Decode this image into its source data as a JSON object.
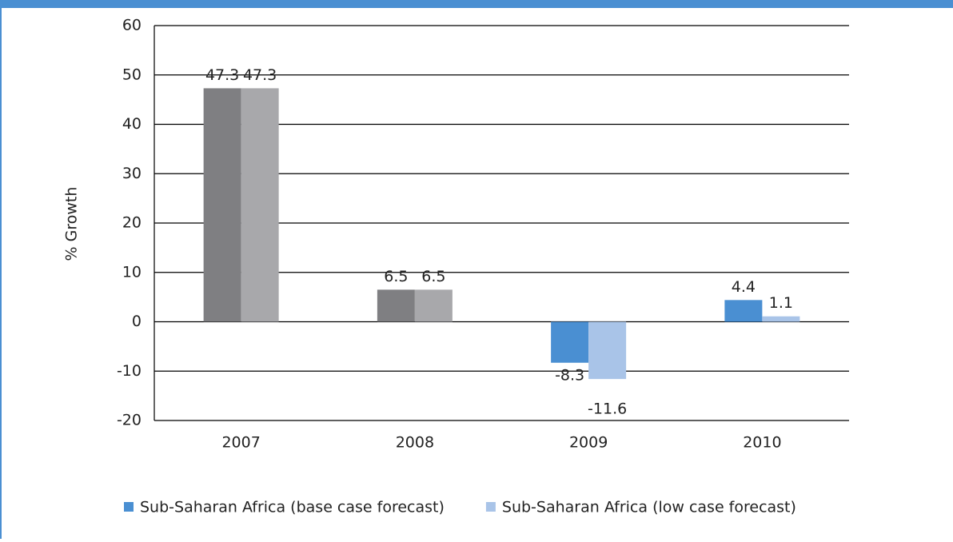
{
  "chart_data": {
    "type": "bar",
    "y_label": "% Growth",
    "categories": [
      "2007",
      "2008",
      "2009",
      "2010"
    ],
    "series": [
      {
        "name": "Sub-Saharan Africa (base case forecast)",
        "color": "#4a8fd2",
        "colors": [
          "#7f7f82",
          "#7f7f82",
          "#4a8fd2",
          "#4a8fd2"
        ],
        "values": [
          47.3,
          6.5,
          -8.3,
          4.4
        ]
      },
      {
        "name": "Sub-Saharan Africa (low case forecast)",
        "color": "#a9c4e8",
        "colors": [
          "#a8a8ab",
          "#a8a8ab",
          "#a9c4e8",
          "#a9c4e8"
        ],
        "values": [
          47.3,
          6.5,
          -11.6,
          1.1
        ]
      }
    ],
    "ylim": [
      -20,
      60
    ],
    "yticks": [
      -20,
      -10,
      0,
      10,
      20,
      30,
      40,
      50,
      60
    ],
    "grid": true
  }
}
